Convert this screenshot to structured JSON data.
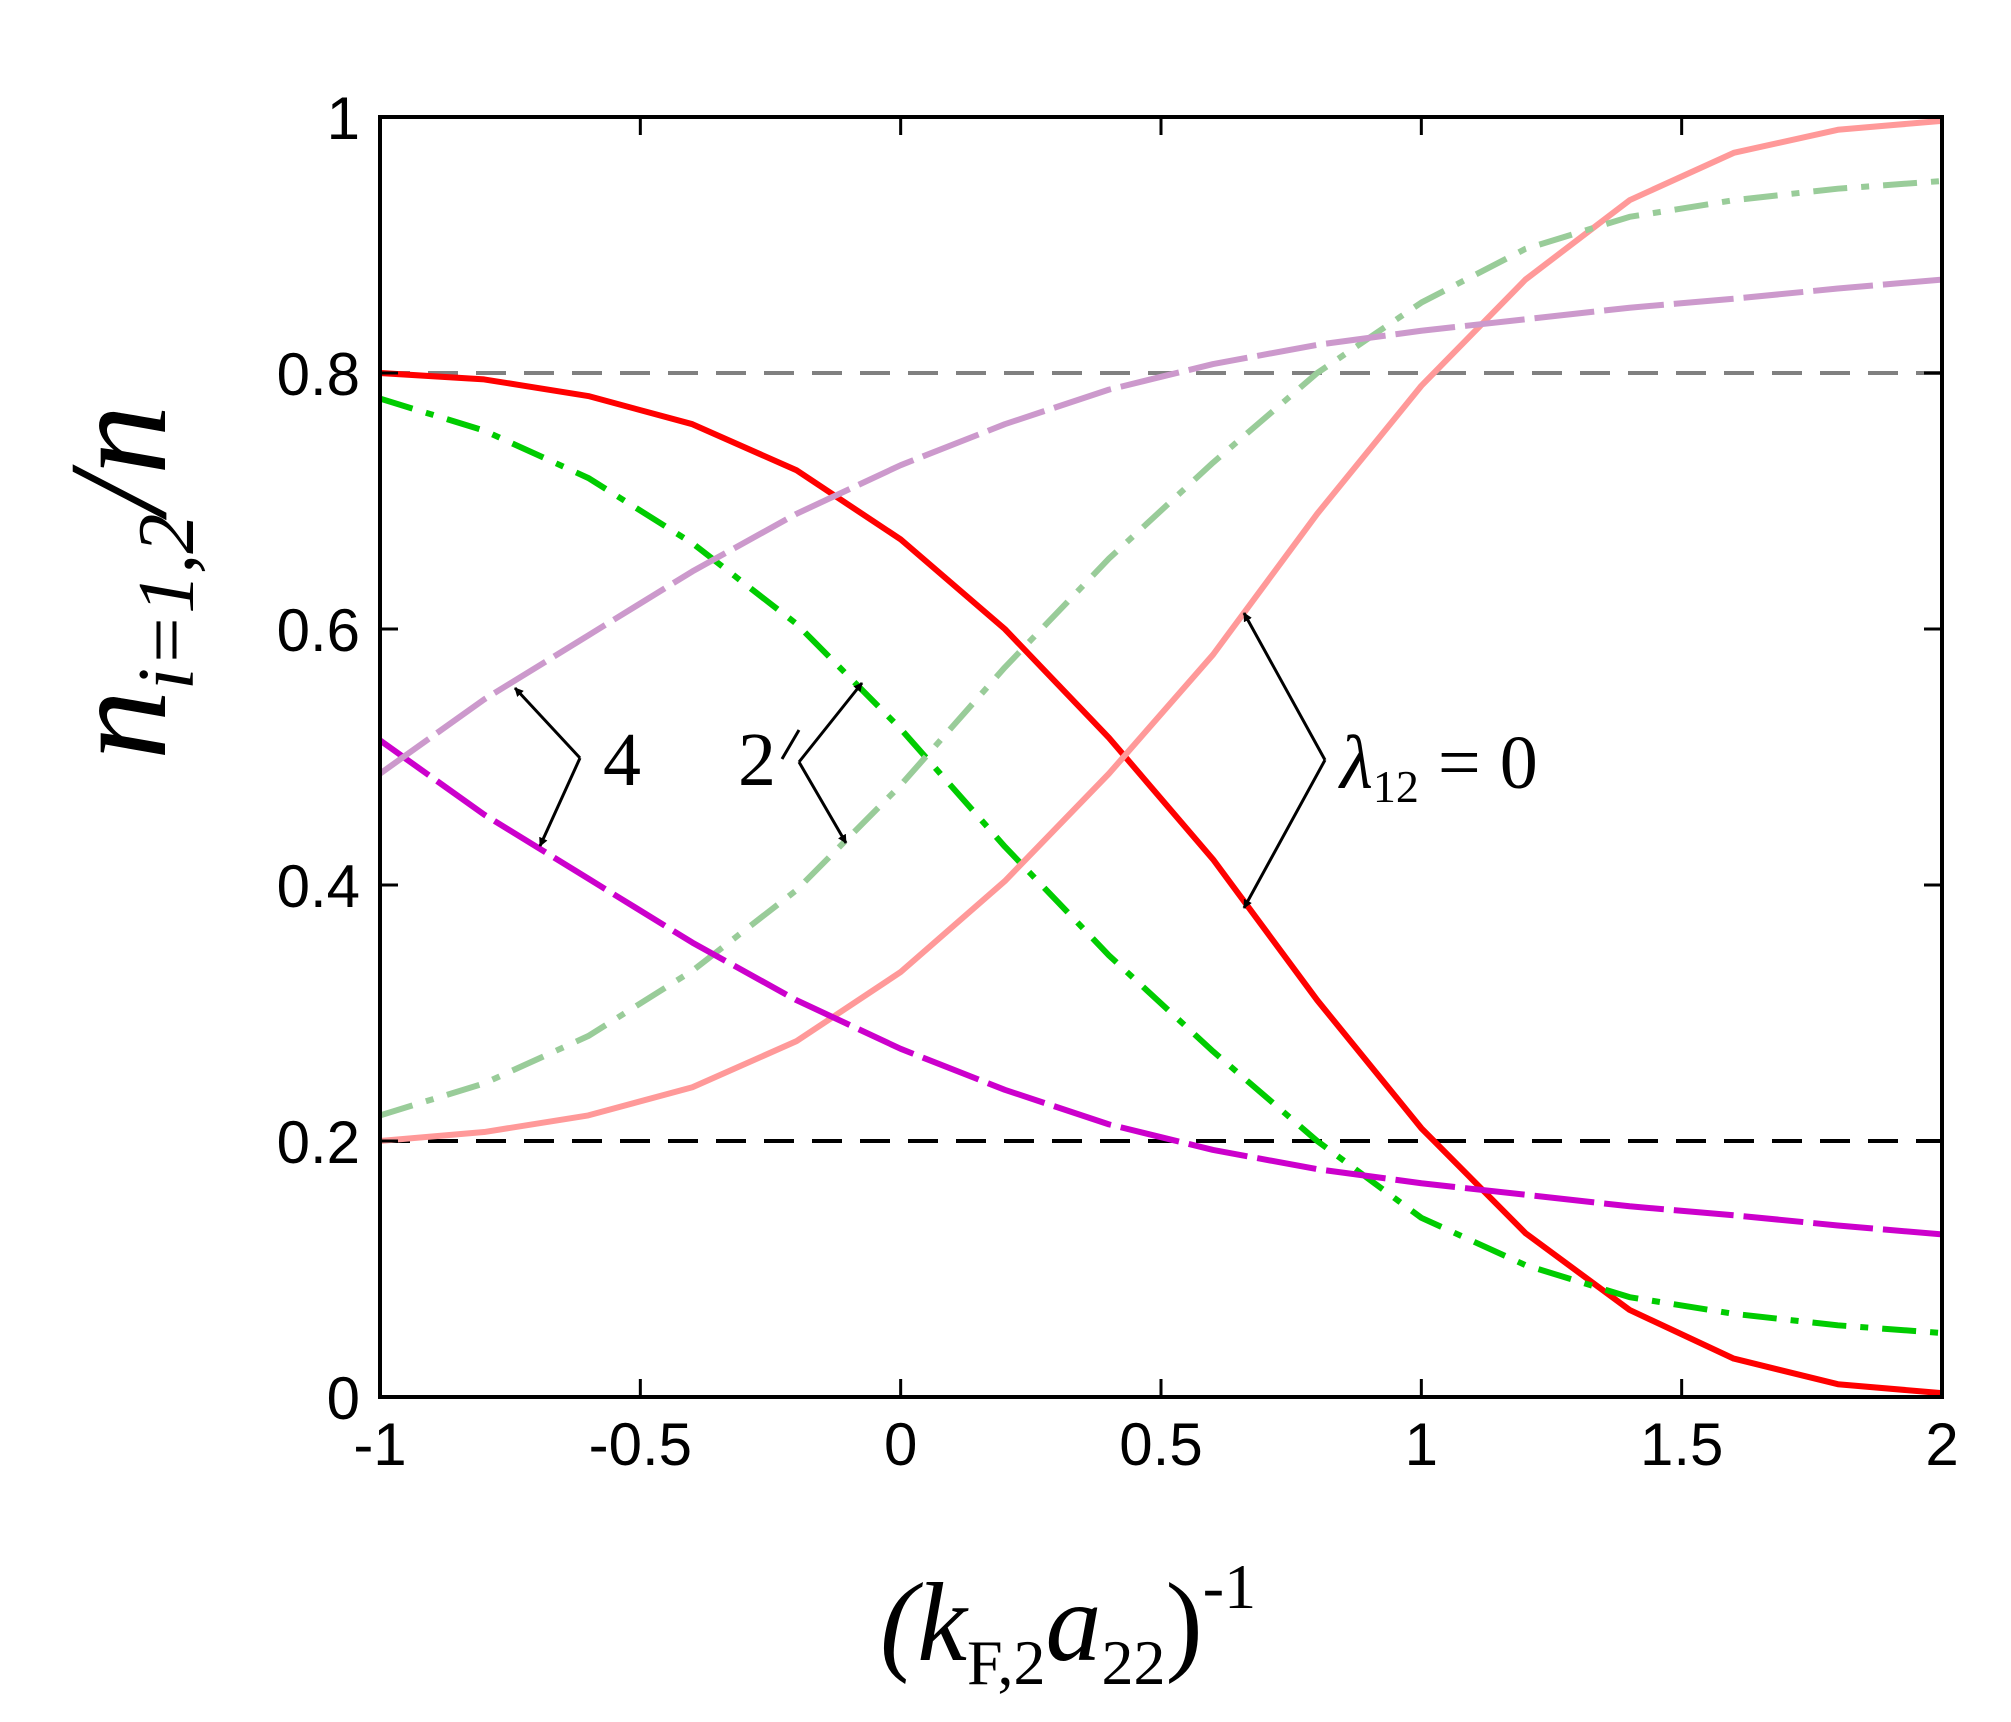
{
  "chart_data": {
    "type": "line",
    "x_ticks": [
      "-1",
      "-0.5",
      "0",
      "0.5",
      "1",
      "1.5",
      "2"
    ],
    "y_ticks": [
      "0",
      "0.2",
      "0.4",
      "0.6",
      "0.8",
      "1"
    ],
    "xlim": [
      -1,
      2
    ],
    "ylim": [
      0,
      1
    ],
    "xlabel": {
      "base": "(k",
      "sub1": "F,2",
      "mid": "a",
      "sub2": "22",
      "close": ")",
      "sup": "-1"
    },
    "ylabel": {
      "base": "n",
      "sub": "i=1,2",
      "tail": "/n"
    },
    "annotations": {
      "lambda_text": "λ",
      "lambda_sub": "12",
      "lambda_rest": " = 0",
      "label_2": "2",
      "label_4": "4"
    },
    "reference_lines": [
      {
        "y": 0.8,
        "color": "#808080",
        "dash": "dashed"
      },
      {
        "y": 0.2,
        "color": "#000000",
        "dash": "dashed"
      }
    ],
    "series": [
      {
        "lambda": "0",
        "component": 1,
        "color": "#ff0000",
        "style": "solid",
        "x": [
          -1,
          -0.8,
          -0.6,
          -0.4,
          -0.2,
          0,
          0.2,
          0.4,
          0.6,
          0.8,
          1,
          1.2,
          1.4,
          1.6,
          1.8,
          2
        ],
        "y": [
          0.8,
          0.795,
          0.782,
          0.76,
          0.724,
          0.67,
          0.6,
          0.515,
          0.42,
          0.31,
          0.21,
          0.128,
          0.068,
          0.03,
          0.01,
          0.003
        ]
      },
      {
        "lambda": "0",
        "component": 2,
        "color": "#ff9999",
        "style": "solid",
        "x": [
          -1,
          -0.8,
          -0.6,
          -0.4,
          -0.2,
          0,
          0.2,
          0.4,
          0.6,
          0.8,
          1,
          1.2,
          1.4,
          1.6,
          1.8,
          2
        ],
        "y": [
          0.2,
          0.207,
          0.22,
          0.242,
          0.278,
          0.332,
          0.403,
          0.487,
          0.58,
          0.69,
          0.79,
          0.873,
          0.935,
          0.972,
          0.99,
          0.997
        ]
      },
      {
        "lambda": "2",
        "component": 1,
        "color": "#00cc00",
        "style": "dash-dot",
        "x": [
          -1,
          -0.8,
          -0.6,
          -0.4,
          -0.2,
          0,
          0.2,
          0.4,
          0.6,
          0.8,
          1,
          1.2,
          1.4,
          1.6,
          1.8,
          2
        ],
        "y": [
          0.78,
          0.755,
          0.718,
          0.667,
          0.604,
          0.522,
          0.43,
          0.345,
          0.27,
          0.2,
          0.14,
          0.103,
          0.078,
          0.065,
          0.056,
          0.05
        ]
      },
      {
        "lambda": "2",
        "component": 2,
        "color": "#99cc99",
        "style": "dash-dot",
        "x": [
          -1,
          -0.8,
          -0.6,
          -0.4,
          -0.2,
          0,
          0.2,
          0.4,
          0.6,
          0.8,
          1,
          1.2,
          1.4,
          1.6,
          1.8,
          2
        ],
        "y": [
          0.22,
          0.245,
          0.282,
          0.333,
          0.396,
          0.478,
          0.57,
          0.655,
          0.73,
          0.8,
          0.855,
          0.897,
          0.922,
          0.935,
          0.944,
          0.95
        ]
      },
      {
        "lambda": "4",
        "component": 1,
        "color": "#cc00cc",
        "style": "long-dash",
        "x": [
          -1,
          -0.8,
          -0.6,
          -0.4,
          -0.2,
          0,
          0.2,
          0.4,
          0.6,
          0.8,
          1,
          1.2,
          1.4,
          1.6,
          1.8,
          2
        ],
        "y": [
          0.513,
          0.455,
          0.405,
          0.355,
          0.31,
          0.272,
          0.24,
          0.213,
          0.193,
          0.178,
          0.167,
          0.158,
          0.149,
          0.142,
          0.134,
          0.127
        ]
      },
      {
        "lambda": "4",
        "component": 2,
        "color": "#cc99cc",
        "style": "long-dash",
        "x": [
          -1,
          -0.8,
          -0.6,
          -0.4,
          -0.2,
          0,
          0.2,
          0.4,
          0.6,
          0.8,
          1,
          1.2,
          1.4,
          1.6,
          1.8,
          2
        ],
        "y": [
          0.487,
          0.545,
          0.595,
          0.645,
          0.69,
          0.728,
          0.76,
          0.787,
          0.807,
          0.822,
          0.833,
          0.842,
          0.851,
          0.858,
          0.866,
          0.873
        ]
      }
    ],
    "grid": false,
    "legend": "none"
  }
}
